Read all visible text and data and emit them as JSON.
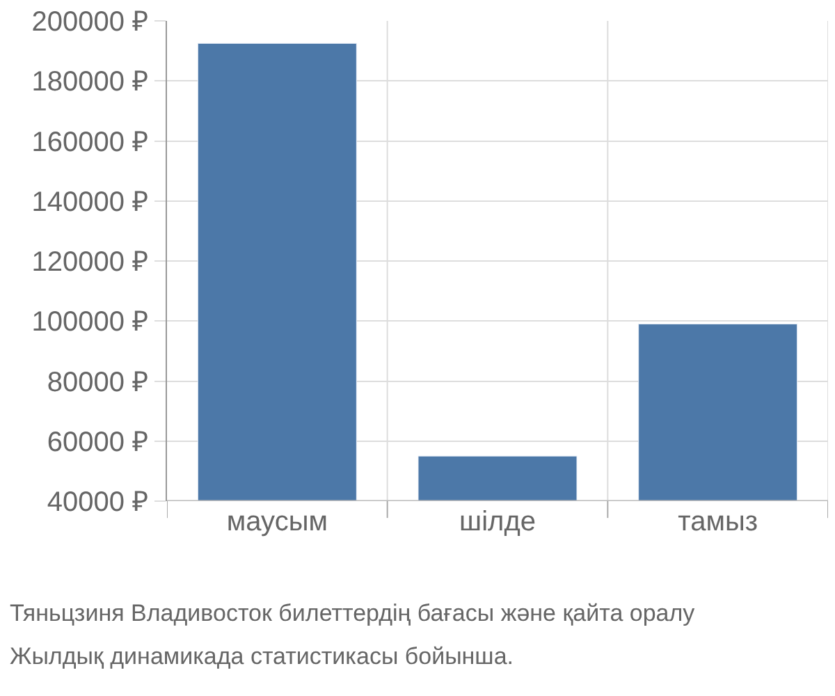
{
  "chart_data": {
    "type": "bar",
    "categories": [
      "маусым",
      "шілде",
      "тамыз"
    ],
    "values": [
      192500,
      55000,
      99000
    ],
    "color": "#4c78a8",
    "ylim": [
      40000,
      200000
    ],
    "yticks": [
      {
        "value": 40000,
        "label": "40000 ₽"
      },
      {
        "value": 60000,
        "label": "60000 ₽"
      },
      {
        "value": 80000,
        "label": "80000 ₽"
      },
      {
        "value": 100000,
        "label": "100000 ₽"
      },
      {
        "value": 120000,
        "label": "120000 ₽"
      },
      {
        "value": 140000,
        "label": "140000 ₽"
      },
      {
        "value": 160000,
        "label": "160000 ₽"
      },
      {
        "value": 180000,
        "label": "180000 ₽"
      },
      {
        "value": 200000,
        "label": "200000 ₽"
      }
    ],
    "grid": true,
    "annotations": [
      "Тяньцзиня Владивосток билеттердің бағасы және қайта оралу",
      "Жылдық динамикада статистикасы бойынша."
    ]
  }
}
